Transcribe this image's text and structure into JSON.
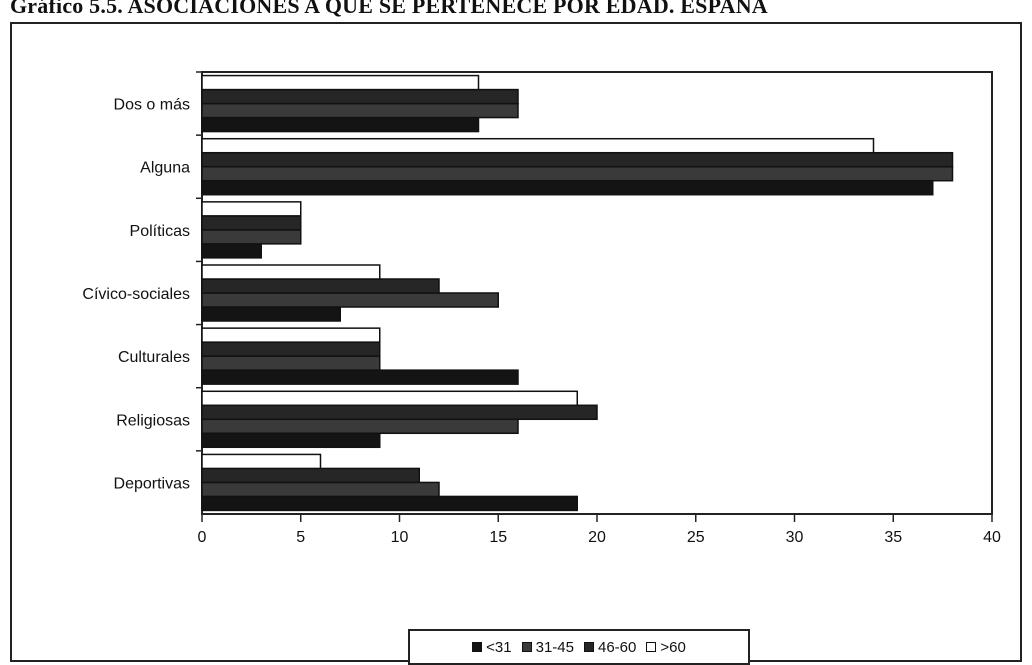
{
  "title": "Gráfico 5.5. ASOCIACIONES A QUE SE PERTENECE POR EDAD. ESPAÑA",
  "chart_data": {
    "type": "bar",
    "orientation": "horizontal",
    "categories": [
      "Dos o más",
      "Alguna",
      "Políticas",
      "Cívico-sociales",
      "Culturales",
      "Religiosas",
      "Deportivas"
    ],
    "series": [
      {
        "name": "<31",
        "color": "#141414",
        "values": [
          14,
          37,
          3,
          7,
          16,
          9,
          19
        ]
      },
      {
        "name": "31-45",
        "color": "#3a3a3a",
        "values": [
          16,
          38,
          5,
          15,
          9,
          16,
          12
        ]
      },
      {
        "name": "46-60",
        "color": "#262626",
        "values": [
          16,
          38,
          5,
          12,
          9,
          20,
          11
        ]
      },
      {
        "name": ">60",
        "color": "#ffffff",
        "values": [
          14,
          34,
          5,
          9,
          9,
          19,
          6
        ]
      }
    ],
    "xlim": [
      0,
      40
    ],
    "x_ticks": [
      "0",
      "5",
      "10",
      "15",
      "20",
      "25",
      "30",
      "35",
      "40"
    ],
    "xlabel": "",
    "ylabel": "",
    "grid": false,
    "legend_position": "bottom"
  }
}
